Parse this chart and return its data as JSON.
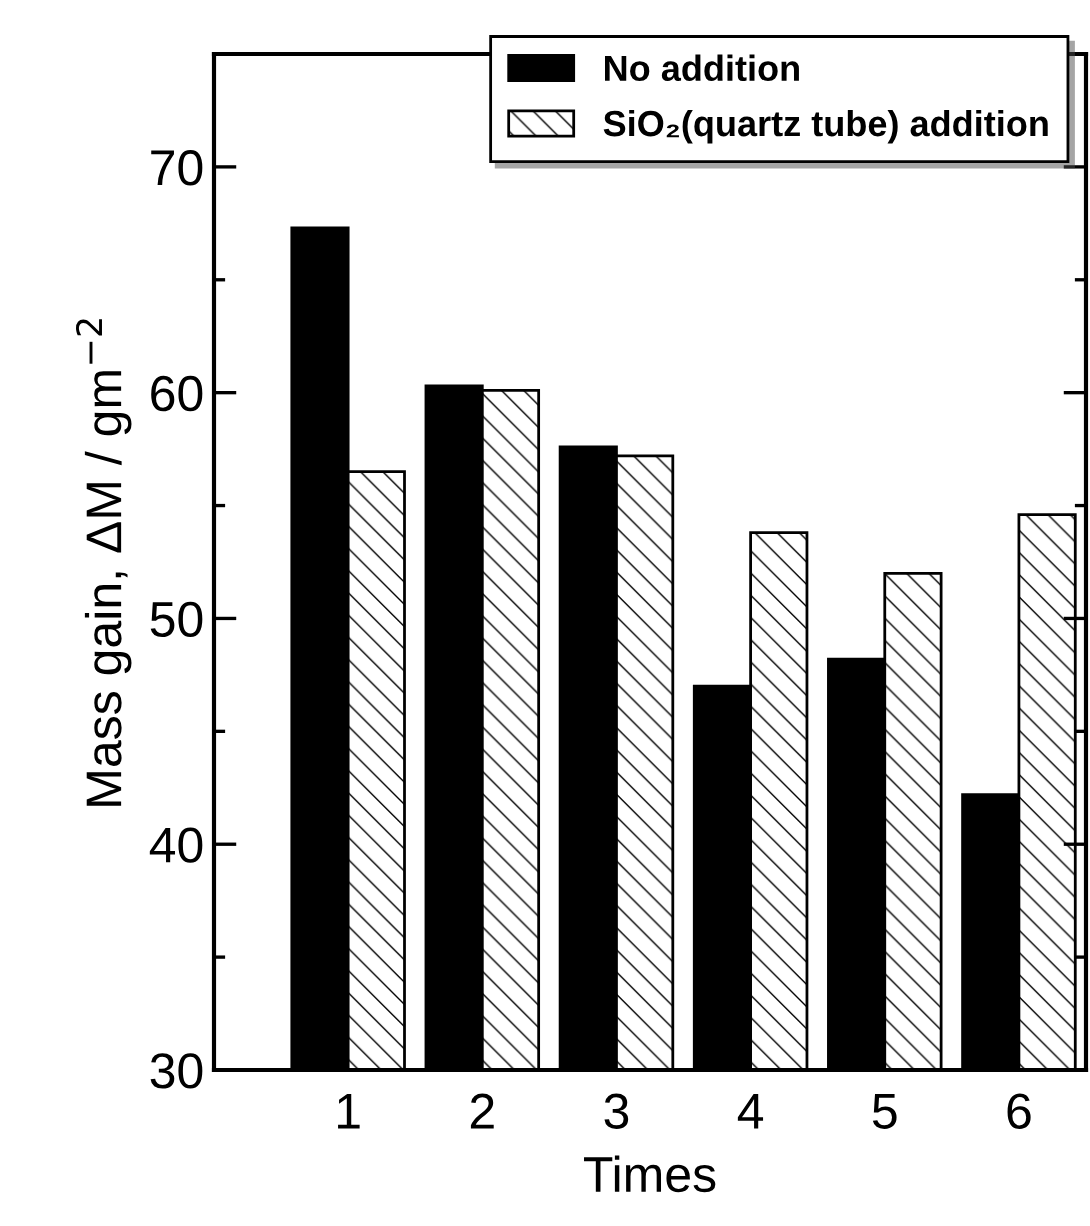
{
  "chart_data": {
    "type": "bar",
    "xlabel": "Times",
    "ylabel": "Mass gain, ΔM / gm$^{−2}$",
    "categories": [
      "1",
      "2",
      "3",
      "4",
      "5",
      "6"
    ],
    "series": [
      {
        "name": "No addition",
        "color": "#000000",
        "values": [
          67.3,
          60.3,
          57.6,
          47.0,
          48.2,
          42.2
        ]
      },
      {
        "name": "SiO₂(quartz tube) addition",
        "color": "#000000",
        "values": [
          56.5,
          60.1,
          57.2,
          53.8,
          52.0,
          54.6
        ]
      }
    ],
    "ylim": [
      30,
      75
    ],
    "yticks": [
      30,
      {
        "value": 35,
        "label": null
      },
      40,
      {
        "value": 45,
        "label": null
      },
      50,
      {
        "value": 55,
        "label": null
      },
      60,
      {
        "value": 65,
        "label": null
      },
      70
    ],
    "grid": false,
    "legend": "top right"
  }
}
